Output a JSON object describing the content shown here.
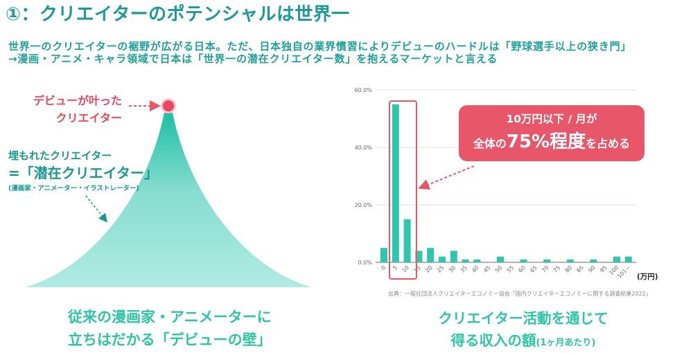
{
  "header": {
    "title": "①：クリエイターのポテンシャルは世界一",
    "subtitle_lines": [
      "世界一のクリエイターの裾野が広がる日本。ただ、日本独自の業界慣習によりデビューのハードルは「野球選手以上の狭き門」",
      "→漫画・アニメ・キャラ領域で日本は「世界一の潜在クリエイター数」を抱えるマーケットと言える"
    ]
  },
  "left_panel": {
    "debut_label": [
      "デビューが叶った",
      "クリエイター"
    ],
    "hidden_label": "埋もれたクリエイター",
    "latent_label": "=「潜在クリエイター」",
    "latent_note": "(漫画家・アニメーター・イラストレーター)",
    "caption": [
      "従来の漫画家・アニメーターに",
      "立ちはだかる「デビューの壁」"
    ]
  },
  "right_panel": {
    "callout": {
      "line1": "10万円以下 / 月が",
      "line2_pre": "全体の",
      "line2_big": "75%程度",
      "line2_post": "を占める"
    },
    "unit_label": "(万円)",
    "source": "出典：一般社団法人クリエイターエコノミー協会「国内クリエイターエコノミーに関する調査結果2022」",
    "caption": {
      "line1": "クリエイター活動を通じて",
      "line2_main": "得る収入の額",
      "line2_note": "(1ヶ月あたり)"
    }
  },
  "colors": {
    "title": "#1b9a98",
    "accent_pink": "#e8566a",
    "bar": "#2fc6ae",
    "mountain_top": "#22bfa6",
    "mountain_bottom": "#b0ebe2",
    "caption": "#2ec4a6"
  },
  "chart_data": {
    "type": "bar",
    "title": "クリエイター活動を通じて得る収入の額(1ヶ月あたり)",
    "xlabel": "(万円)",
    "ylabel": "",
    "categories": [
      "0",
      "5",
      "10",
      "15",
      "20",
      "25",
      "30",
      "35",
      "40",
      "45",
      "50",
      "55",
      "60",
      "65",
      "70",
      "75",
      "80",
      "85",
      "90",
      "95",
      "100",
      "101~"
    ],
    "values": [
      5,
      55,
      15,
      4,
      5,
      2,
      4,
      1,
      1,
      0,
      2,
      0,
      1,
      0,
      1,
      0,
      1,
      0,
      1,
      0,
      2,
      2
    ],
    "unit": "%",
    "ylim": [
      0,
      60
    ],
    "yticks": [
      "0.0%",
      "20.0%",
      "40.0%",
      "60.0%"
    ],
    "grid": true,
    "highlight": {
      "categories": [
        "5",
        "10"
      ],
      "annotation": "10万円以下 / 月が 全体の75%程度を占める"
    },
    "source": "出典：一般社団法人クリエイターエコノミー協会「国内クリエイターエコノミーに関する調査結果2022」"
  }
}
